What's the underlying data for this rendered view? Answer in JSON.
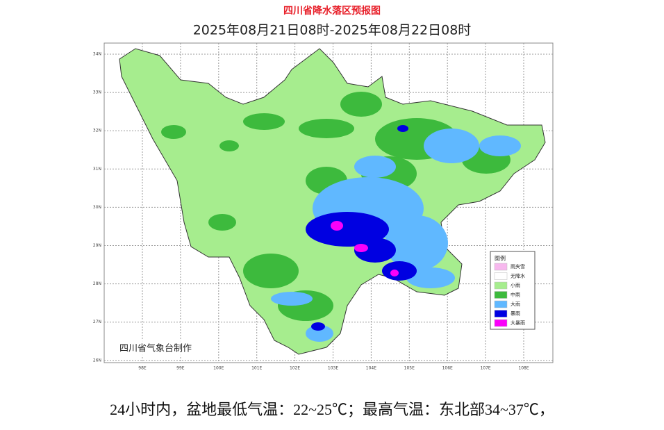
{
  "map": {
    "title": "四川省降水落区预报图",
    "subtitle": "2025年08月21日08时-2025年08月22日08时",
    "credit": "四川省气象台制作",
    "lat_labels": [
      "34N",
      "33N",
      "32N",
      "31N",
      "30N",
      "29N",
      "28N",
      "27N",
      "26N"
    ],
    "lon_labels": [
      "98E",
      "99E",
      "100E",
      "101E",
      "102E",
      "103E",
      "104E",
      "105E",
      "106E",
      "107E",
      "108E"
    ],
    "legend": {
      "title": "图例",
      "items": [
        {
          "name": "雨夹雪",
          "color": "#f7b8ee"
        },
        {
          "name": "无降水",
          "color": "#ffffff"
        },
        {
          "name": "小雨",
          "color": "#a6ed8e"
        },
        {
          "name": "中雨",
          "color": "#3dba3d"
        },
        {
          "name": "大雨",
          "color": "#60b8ff"
        },
        {
          "name": "暴雨",
          "color": "#0000e1"
        },
        {
          "name": "大暴雨",
          "color": "#fa00fa"
        }
      ]
    }
  },
  "caption": "24小时内，盆地最低气温：22~25℃；最高气温：东北部34~37℃，"
}
